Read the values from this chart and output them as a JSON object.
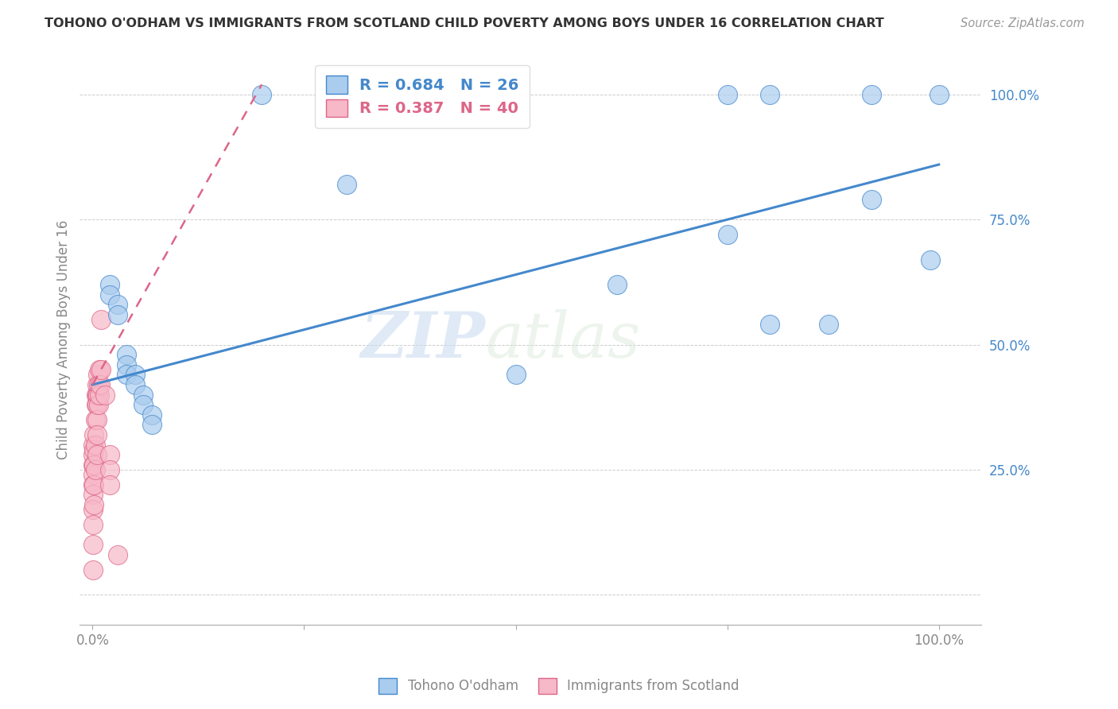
{
  "title": "TOHONO O'ODHAM VS IMMIGRANTS FROM SCOTLAND CHILD POVERTY AMONG BOYS UNDER 16 CORRELATION CHART",
  "source": "Source: ZipAtlas.com",
  "ylabel": "Child Poverty Among Boys Under 16",
  "blue_R": 0.684,
  "blue_N": 26,
  "pink_R": 0.387,
  "pink_N": 40,
  "blue_color": "#aaccee",
  "pink_color": "#f7b8c8",
  "trend_blue": "#4488cc",
  "trend_pink": "#dd6688",
  "blue_scatter_x": [
    0.2,
    0.3,
    0.02,
    0.02,
    0.03,
    0.03,
    0.04,
    0.04,
    0.04,
    0.05,
    0.05,
    0.06,
    0.06,
    0.07,
    0.07,
    0.5,
    0.62,
    0.75,
    0.75,
    0.8,
    0.8,
    0.87,
    0.92,
    0.92,
    0.99,
    1.0
  ],
  "blue_scatter_y": [
    1.0,
    0.82,
    0.62,
    0.6,
    0.58,
    0.56,
    0.48,
    0.46,
    0.44,
    0.44,
    0.42,
    0.4,
    0.38,
    0.36,
    0.34,
    0.44,
    0.62,
    0.72,
    1.0,
    1.0,
    0.54,
    0.54,
    0.79,
    1.0,
    0.67,
    1.0
  ],
  "pink_scatter_x": [
    0.001,
    0.001,
    0.001,
    0.001,
    0.001,
    0.001,
    0.001,
    0.001,
    0.001,
    0.001,
    0.002,
    0.002,
    0.002,
    0.002,
    0.002,
    0.003,
    0.003,
    0.003,
    0.004,
    0.004,
    0.005,
    0.005,
    0.005,
    0.005,
    0.005,
    0.005,
    0.006,
    0.006,
    0.007,
    0.007,
    0.008,
    0.008,
    0.009,
    0.01,
    0.01,
    0.015,
    0.02,
    0.02,
    0.02,
    0.03
  ],
  "pink_scatter_y": [
    0.3,
    0.28,
    0.26,
    0.24,
    0.22,
    0.2,
    0.17,
    0.14,
    0.1,
    0.05,
    0.32,
    0.29,
    0.26,
    0.22,
    0.18,
    0.35,
    0.3,
    0.25,
    0.4,
    0.38,
    0.42,
    0.4,
    0.38,
    0.35,
    0.32,
    0.28,
    0.44,
    0.4,
    0.42,
    0.38,
    0.45,
    0.4,
    0.42,
    0.55,
    0.45,
    0.4,
    0.28,
    0.25,
    0.22,
    0.08
  ],
  "blue_line_x0": 0.0,
  "blue_line_y0": 0.42,
  "blue_line_x1": 1.0,
  "blue_line_y1": 0.86,
  "pink_line_x0": 0.0,
  "pink_line_y0": 0.42,
  "pink_line_x1": 0.2,
  "pink_line_y1": 1.02,
  "xlim": [
    -0.015,
    1.05
  ],
  "ylim": [
    -0.06,
    1.08
  ],
  "yticks": [
    0.0,
    0.25,
    0.5,
    0.75,
    1.0
  ],
  "ytick_labels": [
    "",
    "25.0%",
    "50.0%",
    "75.0%",
    "100.0%"
  ],
  "xticks": [
    0.0,
    0.25,
    0.5,
    0.75,
    1.0
  ],
  "xtick_labels": [
    "0.0%",
    "",
    "",
    "",
    "100.0%"
  ],
  "watermark_zip": "ZIP",
  "watermark_atlas": "atlas",
  "background_color": "#ffffff",
  "grid_color": "#cccccc"
}
